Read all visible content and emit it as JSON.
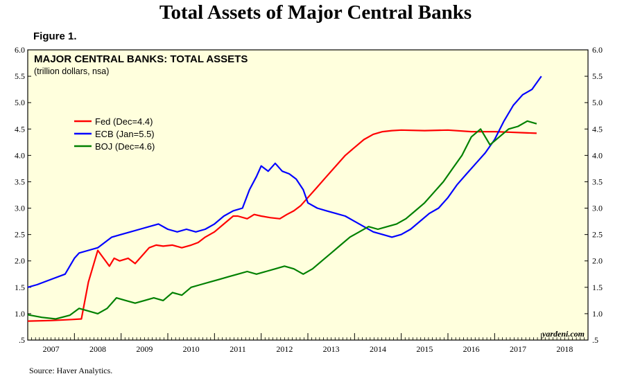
{
  "page": {
    "title": "Total Assets of Major Central Banks",
    "figure_label": "Figure 1.",
    "source": "Source: Haver Analytics.",
    "watermark": "yardeni.com"
  },
  "chart_data": {
    "type": "line",
    "title": "MAJOR CENTRAL BANKS: TOTAL ASSETS",
    "subtitle": "(trillion dollars, nsa)",
    "xlabel": "",
    "ylabel": "",
    "ylim": [
      0.5,
      6.0
    ],
    "xlim": [
      2007.0,
      2019.0
    ],
    "y_ticks": [
      ".5",
      "1.0",
      "1.5",
      "2.0",
      "2.5",
      "3.0",
      "3.5",
      "4.0",
      "4.5",
      "5.0",
      "5.5",
      "6.0"
    ],
    "x_tick_labels": [
      "2007",
      "2008",
      "2009",
      "2010",
      "2011",
      "2012",
      "2013",
      "2014",
      "2015",
      "2016",
      "2017",
      "2018"
    ],
    "plot_background": "#ffffdd",
    "legend_position": "upper-left",
    "grid": false,
    "series": [
      {
        "name": "Fed (Dec=4.4)",
        "color": "#ff0000",
        "x": [
          2007.0,
          2007.5,
          2007.95,
          2008.15,
          2008.3,
          2008.5,
          2008.75,
          2008.85,
          2008.97,
          2009.15,
          2009.3,
          2009.45,
          2009.6,
          2009.75,
          2009.9,
          2010.1,
          2010.3,
          2010.5,
          2010.65,
          2010.8,
          2011.0,
          2011.2,
          2011.4,
          2011.5,
          2011.7,
          2011.85,
          2012.0,
          2012.2,
          2012.4,
          2012.55,
          2012.7,
          2012.85,
          2013.0,
          2013.2,
          2013.4,
          2013.6,
          2013.8,
          2014.0,
          2014.2,
          2014.4,
          2014.6,
          2014.8,
          2015.0,
          2015.5,
          2016.0,
          2016.5,
          2017.0,
          2017.3,
          2017.6,
          2017.9
        ],
        "values": [
          0.86,
          0.87,
          0.89,
          0.9,
          1.6,
          2.2,
          1.9,
          2.05,
          2.0,
          2.05,
          1.95,
          2.1,
          2.25,
          2.3,
          2.28,
          2.3,
          2.25,
          2.3,
          2.35,
          2.45,
          2.55,
          2.7,
          2.85,
          2.85,
          2.8,
          2.88,
          2.85,
          2.82,
          2.8,
          2.88,
          2.95,
          3.05,
          3.2,
          3.4,
          3.6,
          3.8,
          4.0,
          4.15,
          4.3,
          4.4,
          4.45,
          4.47,
          4.48,
          4.47,
          4.48,
          4.45,
          4.45,
          4.44,
          4.43,
          4.42
        ]
      },
      {
        "name": "ECB (Jan=5.5)",
        "color": "#0000ff",
        "x": [
          2007.0,
          2007.2,
          2007.5,
          2007.8,
          2008.0,
          2008.1,
          2008.3,
          2008.5,
          2008.8,
          2009.0,
          2009.2,
          2009.4,
          2009.6,
          2009.8,
          2010.0,
          2010.2,
          2010.4,
          2010.6,
          2010.8,
          2011.0,
          2011.2,
          2011.4,
          2011.6,
          2011.75,
          2011.9,
          2012.0,
          2012.15,
          2012.3,
          2012.45,
          2012.6,
          2012.75,
          2012.9,
          2013.0,
          2013.2,
          2013.4,
          2013.6,
          2013.8,
          2014.0,
          2014.2,
          2014.4,
          2014.6,
          2014.8,
          2015.0,
          2015.2,
          2015.4,
          2015.6,
          2015.8,
          2016.0,
          2016.2,
          2016.4,
          2016.6,
          2016.8,
          2017.0,
          2017.2,
          2017.4,
          2017.6,
          2017.8,
          2018.0
        ],
        "values": [
          1.5,
          1.55,
          1.65,
          1.75,
          2.05,
          2.15,
          2.2,
          2.25,
          2.45,
          2.5,
          2.55,
          2.6,
          2.65,
          2.7,
          2.6,
          2.55,
          2.6,
          2.55,
          2.6,
          2.7,
          2.85,
          2.95,
          3.0,
          3.35,
          3.6,
          3.8,
          3.7,
          3.85,
          3.7,
          3.65,
          3.55,
          3.35,
          3.1,
          3.0,
          2.95,
          2.9,
          2.85,
          2.75,
          2.65,
          2.55,
          2.5,
          2.45,
          2.5,
          2.6,
          2.75,
          2.9,
          3.0,
          3.2,
          3.45,
          3.65,
          3.85,
          4.05,
          4.3,
          4.65,
          4.95,
          5.15,
          5.25,
          5.5
        ]
      },
      {
        "name": "BOJ (Dec=4.6)",
        "color": "#008000",
        "x": [
          2007.0,
          2007.3,
          2007.6,
          2007.9,
          2008.1,
          2008.3,
          2008.5,
          2008.7,
          2008.9,
          2009.1,
          2009.3,
          2009.5,
          2009.7,
          2009.9,
          2010.1,
          2010.3,
          2010.5,
          2010.7,
          2010.9,
          2011.1,
          2011.3,
          2011.5,
          2011.7,
          2011.9,
          2012.1,
          2012.3,
          2012.5,
          2012.7,
          2012.9,
          2013.1,
          2013.3,
          2013.5,
          2013.7,
          2013.9,
          2014.1,
          2014.3,
          2014.5,
          2014.7,
          2014.9,
          2015.1,
          2015.3,
          2015.5,
          2015.7,
          2015.9,
          2016.1,
          2016.3,
          2016.5,
          2016.7,
          2016.9,
          2017.1,
          2017.3,
          2017.5,
          2017.7,
          2017.9
        ],
        "values": [
          0.98,
          0.93,
          0.9,
          0.97,
          1.1,
          1.05,
          1.0,
          1.1,
          1.3,
          1.25,
          1.2,
          1.25,
          1.3,
          1.25,
          1.4,
          1.35,
          1.5,
          1.55,
          1.6,
          1.65,
          1.7,
          1.75,
          1.8,
          1.75,
          1.8,
          1.85,
          1.9,
          1.85,
          1.75,
          1.85,
          2.0,
          2.15,
          2.3,
          2.45,
          2.55,
          2.65,
          2.6,
          2.65,
          2.7,
          2.8,
          2.95,
          3.1,
          3.3,
          3.5,
          3.75,
          4.0,
          4.35,
          4.5,
          4.2,
          4.35,
          4.5,
          4.55,
          4.65,
          4.6
        ]
      }
    ]
  }
}
